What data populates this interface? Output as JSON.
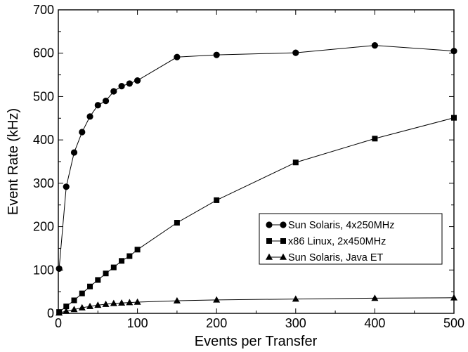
{
  "chart_data": {
    "type": "line",
    "title": "",
    "xlabel": "Events per Transfer",
    "ylabel": "Event Rate (kHz)",
    "xlim": [
      0,
      500
    ],
    "ylim": [
      0,
      700
    ],
    "xticks": [
      0,
      100,
      200,
      300,
      400,
      500
    ],
    "yticks": [
      0,
      100,
      200,
      300,
      400,
      500,
      600,
      700
    ],
    "grid": false,
    "legend_position": "center-right",
    "series": [
      {
        "name": "Sun Solaris, 4x250MHz",
        "marker": "circle",
        "color": "#000000",
        "x": [
          1,
          10,
          20,
          30,
          40,
          50,
          60,
          70,
          80,
          90,
          100,
          150,
          200,
          300,
          400,
          500
        ],
        "y": [
          103,
          292,
          371,
          418,
          454,
          480,
          490,
          512,
          524,
          530,
          537,
          591,
          596,
          601,
          618,
          605
        ]
      },
      {
        "name": "x86 Linux, 2x450MHz",
        "marker": "square",
        "color": "#000000",
        "x": [
          1,
          10,
          20,
          30,
          40,
          50,
          60,
          70,
          80,
          90,
          100,
          150,
          200,
          300,
          400,
          500
        ],
        "y": [
          3,
          16,
          30,
          46,
          62,
          77,
          92,
          106,
          121,
          132,
          147,
          209,
          261,
          348,
          403,
          451
        ]
      },
      {
        "name": "Sun Solaris, Java ET",
        "marker": "triangle",
        "color": "#000000",
        "x": [
          1,
          10,
          20,
          30,
          40,
          50,
          60,
          70,
          80,
          90,
          100,
          150,
          200,
          300,
          400,
          500
        ],
        "y": [
          1,
          5,
          9,
          13,
          16,
          19,
          21,
          23,
          24,
          25,
          26,
          29,
          31,
          33,
          35,
          36
        ]
      }
    ]
  }
}
